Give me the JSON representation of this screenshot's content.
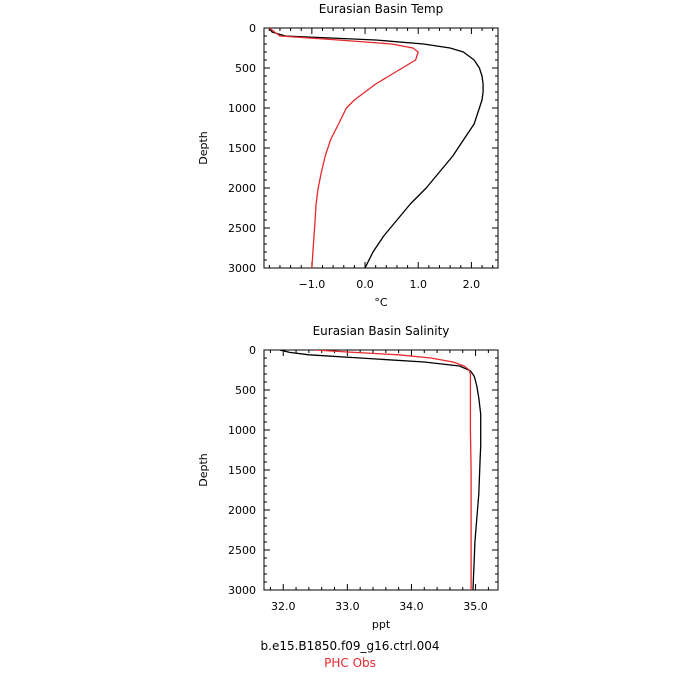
{
  "chart_data": [
    {
      "type": "line",
      "title": "Eurasian Basin Temp",
      "xlabel": "°C",
      "ylabel": "Depth",
      "xlim": [
        -1.9,
        2.5
      ],
      "ylim": [
        3000,
        0
      ],
      "y_inverted": true,
      "xticks": [
        -1.0,
        0.0,
        1.0,
        2.0
      ],
      "xtick_labels": [
        "−1.0",
        "0.0",
        "1.0",
        "2.0"
      ],
      "yticks": [
        0,
        500,
        1000,
        1500,
        2000,
        2500,
        3000
      ],
      "ytick_labels": [
        "0",
        "500",
        "1000",
        "1500",
        "2000",
        "2500",
        "3000"
      ],
      "series": [
        {
          "name": "b.e15.B1850.f09_g16.ctrl.004",
          "color": "#000000",
          "points": [
            [
              -1.8,
              0
            ],
            [
              -1.75,
              50
            ],
            [
              -1.5,
              100
            ],
            [
              0.2,
              150
            ],
            [
              1.1,
              200
            ],
            [
              1.6,
              250
            ],
            [
              1.85,
              300
            ],
            [
              2.05,
              400
            ],
            [
              2.15,
              500
            ],
            [
              2.2,
              600
            ],
            [
              2.22,
              700
            ],
            [
              2.22,
              800
            ],
            [
              2.2,
              900
            ],
            [
              2.15,
              1000
            ],
            [
              2.05,
              1200
            ],
            [
              1.85,
              1400
            ],
            [
              1.65,
              1600
            ],
            [
              1.4,
              1800
            ],
            [
              1.15,
              2000
            ],
            [
              0.85,
              2200
            ],
            [
              0.6,
              2400
            ],
            [
              0.35,
              2600
            ],
            [
              0.15,
              2800
            ],
            [
              0.0,
              3000
            ]
          ]
        },
        {
          "name": "PHC Obs",
          "color": "#e8282c",
          "points": [
            [
              -1.8,
              0
            ],
            [
              -1.7,
              50
            ],
            [
              -1.6,
              100
            ],
            [
              -0.5,
              150
            ],
            [
              0.5,
              200
            ],
            [
              0.9,
              250
            ],
            [
              1.0,
              300
            ],
            [
              0.95,
              400
            ],
            [
              0.7,
              500
            ],
            [
              0.45,
              600
            ],
            [
              0.2,
              700
            ],
            [
              0.0,
              800
            ],
            [
              -0.2,
              900
            ],
            [
              -0.35,
              1000
            ],
            [
              -0.5,
              1200
            ],
            [
              -0.65,
              1400
            ],
            [
              -0.75,
              1600
            ],
            [
              -0.82,
              1800
            ],
            [
              -0.88,
              2000
            ],
            [
              -0.92,
              2200
            ],
            [
              -0.94,
              2400
            ],
            [
              -0.96,
              2600
            ],
            [
              -0.98,
              2800
            ],
            [
              -1.0,
              3000
            ]
          ]
        }
      ]
    },
    {
      "type": "line",
      "title": "Eurasian Basin Salinity",
      "xlabel": "ppt",
      "ylabel": "Depth",
      "xlim": [
        31.7,
        35.35
      ],
      "ylim": [
        3000,
        0
      ],
      "y_inverted": true,
      "xticks": [
        32.0,
        33.0,
        34.0,
        35.0
      ],
      "xtick_labels": [
        "32.0",
        "33.0",
        "34.0",
        "35.0"
      ],
      "yticks": [
        0,
        500,
        1000,
        1500,
        2000,
        2500,
        3000
      ],
      "ytick_labels": [
        "0",
        "500",
        "1000",
        "1500",
        "2000",
        "2500",
        "3000"
      ],
      "series": [
        {
          "name": "b.e15.B1850.f09_g16.ctrl.004",
          "color": "#000000",
          "points": [
            [
              31.95,
              0
            ],
            [
              32.1,
              30
            ],
            [
              32.4,
              60
            ],
            [
              33.2,
              100
            ],
            [
              34.2,
              150
            ],
            [
              34.75,
              200
            ],
            [
              34.92,
              260
            ],
            [
              34.98,
              330
            ],
            [
              35.02,
              450
            ],
            [
              35.05,
              600
            ],
            [
              35.08,
              800
            ],
            [
              35.08,
              1000
            ],
            [
              35.08,
              1200
            ],
            [
              35.07,
              1400
            ],
            [
              35.06,
              1600
            ],
            [
              35.05,
              1800
            ],
            [
              35.03,
              2000
            ],
            [
              35.01,
              2200
            ],
            [
              34.99,
              2400
            ],
            [
              34.98,
              2600
            ],
            [
              34.97,
              2800
            ],
            [
              34.96,
              3000
            ]
          ]
        },
        {
          "name": "PHC Obs",
          "color": "#e8282c",
          "points": [
            [
              32.5,
              0
            ],
            [
              33.0,
              25
            ],
            [
              33.8,
              60
            ],
            [
              34.3,
              100
            ],
            [
              34.65,
              150
            ],
            [
              34.82,
              200
            ],
            [
              34.9,
              250
            ],
            [
              34.92,
              300
            ],
            [
              34.92,
              400
            ],
            [
              34.92,
              600
            ],
            [
              34.92,
              1000
            ],
            [
              34.93,
              1500
            ],
            [
              34.93,
              2000
            ],
            [
              34.93,
              2500
            ],
            [
              34.93,
              3000
            ]
          ]
        }
      ]
    }
  ],
  "legend": {
    "model_label": "b.e15.B1850.f09_g16.ctrl.004",
    "obs_label": "PHC Obs"
  }
}
